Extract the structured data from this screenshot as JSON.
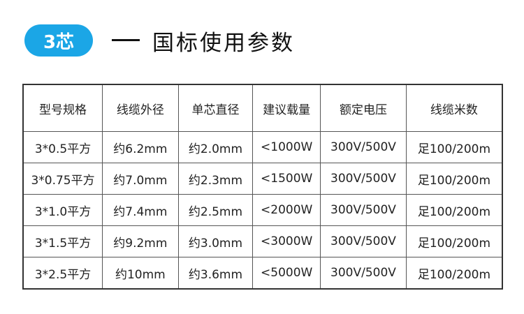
{
  "header": {
    "badge": "3芯",
    "title": "国标使用参数",
    "accent": "#1ba6e6"
  },
  "table": {
    "columns": [
      "型号规格",
      "线缆外径",
      "单芯直径",
      "建议载量",
      "额定电压",
      "线缆米数"
    ],
    "rows": [
      [
        "3*0.5平方",
        "约6.2mm",
        "约2.0mm",
        "<1000W",
        "300V/500V",
        "足100/200m"
      ],
      [
        "3*0.75平方",
        "约7.0mm",
        "约2.3mm",
        "<1500W",
        "300V/500V",
        "足100/200m"
      ],
      [
        "3*1.0平方",
        "约7.4mm",
        "约2.5mm",
        "<2000W",
        "300V/500V",
        "足100/200m"
      ],
      [
        "3*1.5平方",
        "约9.2mm",
        "约3.0mm",
        "<3000W",
        "300V/500V",
        "足100/200m"
      ],
      [
        "3*2.5平方",
        "约10mm",
        "约3.6mm",
        "<5000W",
        "300V/500V",
        "足100/200m"
      ]
    ]
  }
}
